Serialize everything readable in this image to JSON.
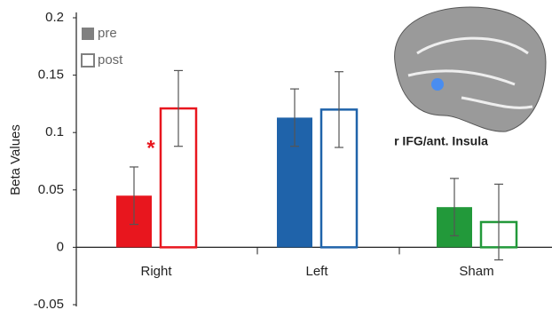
{
  "chart_data": {
    "type": "bar",
    "y_label": "Beta Values",
    "categories": [
      "Right",
      "Left",
      "Sham"
    ],
    "colors": [
      "#e8161e",
      "#1f63aa",
      "#22993a"
    ],
    "series": [
      {
        "name": "pre",
        "color": "#808080",
        "style": "filled",
        "values": [
          0.045,
          0.113,
          0.035
        ],
        "errors": [
          0.025,
          0.025,
          0.025
        ]
      },
      {
        "name": "post",
        "color": "#808080",
        "style": "outline",
        "values": [
          0.121,
          0.12,
          0.022
        ],
        "errors": [
          0.033,
          0.033,
          0.033
        ]
      }
    ],
    "annotation": "*",
    "image_label": "r IFG/ant. Insula",
    "ylim": [
      -0.05,
      0.2
    ],
    "yticks": [
      -0.05,
      0,
      0.05,
      0.1,
      0.15,
      0.2
    ]
  }
}
